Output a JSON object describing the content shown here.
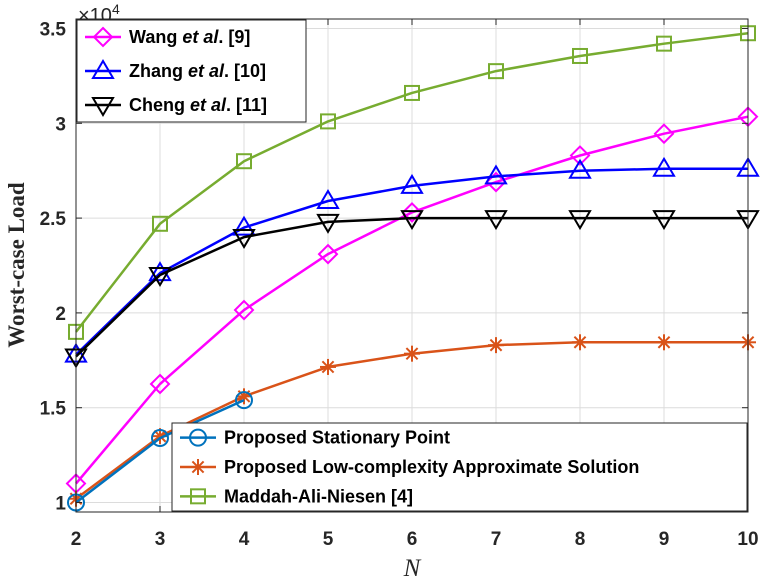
{
  "chart_data": {
    "type": "line",
    "title": "",
    "xlabel": "N",
    "ylabel": "Worst-case Load",
    "y_exponent": "×10",
    "y_exponent_power": "4",
    "xlim": [
      2,
      10
    ],
    "ylim": [
      9500,
      35500
    ],
    "x_ticks": [
      "2",
      "3",
      "4",
      "5",
      "6",
      "7",
      "8",
      "9",
      "10"
    ],
    "y_ticks": [
      {
        "value": 10000,
        "label": "1"
      },
      {
        "value": 15000,
        "label": "1.5"
      },
      {
        "value": 20000,
        "label": "2"
      },
      {
        "value": 25000,
        "label": "2.5"
      },
      {
        "value": 30000,
        "label": "3"
      },
      {
        "value": 35000,
        "label": "3.5"
      }
    ],
    "grid": true,
    "series": [
      {
        "id": "maddah",
        "name": "Maddah-Ali-Niesen [4]",
        "color": "#77AC30",
        "marker": "square",
        "x": [
          2,
          3,
          4,
          5,
          6,
          7,
          8,
          9,
          10
        ],
        "values": [
          19000,
          24700,
          28000,
          30100,
          31600,
          32750,
          33550,
          34200,
          34750
        ]
      },
      {
        "id": "wang",
        "name": "Wang et al. [9]",
        "name_prefix": "Wang ",
        "name_italic": "et al",
        "name_suffix": ". [9]",
        "color": "#FF00FF",
        "marker": "diamond",
        "x": [
          2,
          3,
          4,
          5,
          6,
          7,
          8,
          9,
          10
        ],
        "values": [
          11000,
          16250,
          20150,
          23100,
          25300,
          26900,
          28300,
          29450,
          30350
        ]
      },
      {
        "id": "zhang",
        "name": "Zhang et al. [10]",
        "name_prefix": "Zhang ",
        "name_italic": "et al",
        "name_suffix": ". [10]",
        "color": "#0000FF",
        "marker": "triangle-up",
        "x": [
          2,
          3,
          4,
          5,
          6,
          7,
          8,
          9,
          10
        ],
        "values": [
          17800,
          22100,
          24500,
          25900,
          26700,
          27200,
          27500,
          27600,
          27600
        ]
      },
      {
        "id": "cheng",
        "name": "Cheng et al. [11]",
        "name_prefix": "Cheng ",
        "name_italic": "et al",
        "name_suffix": ". [11]",
        "color": "#000000",
        "marker": "triangle-down",
        "x": [
          2,
          3,
          4,
          5,
          6,
          7,
          8,
          9,
          10
        ],
        "values": [
          17700,
          22000,
          24000,
          24800,
          25000,
          25000,
          25000,
          25000,
          25000
        ]
      },
      {
        "id": "lowcomplexity",
        "name": "Proposed Low-complexity Approximate Solution",
        "color": "#D95319",
        "marker": "asterisk",
        "x": [
          2,
          3,
          4,
          5,
          6,
          7,
          8,
          9,
          10
        ],
        "values": [
          10200,
          13500,
          15600,
          17150,
          17850,
          18300,
          18450,
          18450,
          18450
        ]
      },
      {
        "id": "stationary",
        "name": "Proposed Stationary Point",
        "color": "#0072BD",
        "marker": "circle",
        "x": [
          2,
          3,
          4
        ],
        "values": [
          10000,
          13400,
          15400
        ]
      }
    ],
    "legends": [
      {
        "position": "top-left",
        "items": [
          "wang",
          "zhang",
          "cheng"
        ]
      },
      {
        "position": "bottom-right",
        "items": [
          "stationary",
          "lowcomplexity",
          "maddah"
        ]
      }
    ]
  }
}
